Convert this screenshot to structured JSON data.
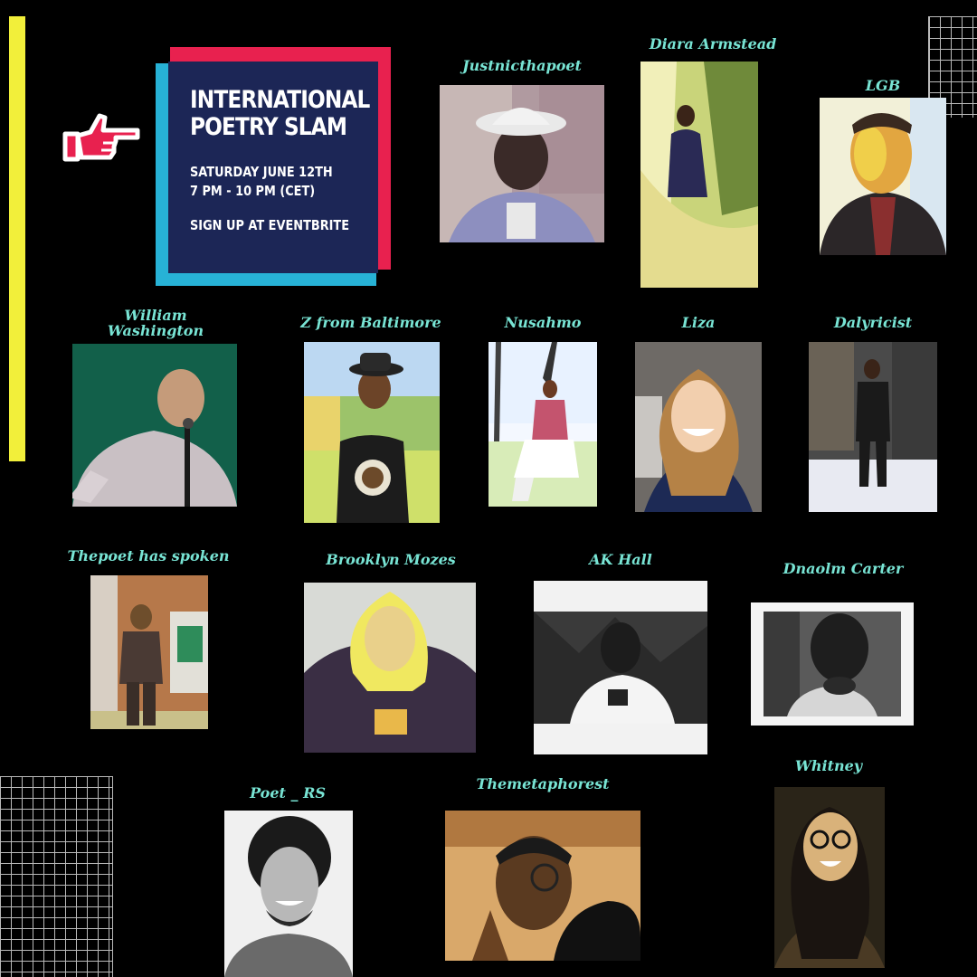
{
  "event": {
    "title_line1": "INTERNATIONAL",
    "title_line2": "POETRY SLAM",
    "date": "SATURDAY JUNE 12TH",
    "time": "7 PM - 10 PM (CET)",
    "signup": "SIGN UP AT EVENTBRITE"
  },
  "colors": {
    "accent_yellow": "#f2ef3a",
    "poster_red": "#e8214f",
    "poster_blue": "#27b2d6",
    "poster_navy": "#1c2656",
    "name_teal": "#78e4d4"
  },
  "icons": [
    "pointing-hand-icon"
  ],
  "poets": [
    {
      "name": "Justnicthapoet"
    },
    {
      "name": "Diara Armstead"
    },
    {
      "name": "LGB"
    },
    {
      "name": "William Washington"
    },
    {
      "name": "Z from Baltimore"
    },
    {
      "name": "Nusahmo"
    },
    {
      "name": "Liza"
    },
    {
      "name": "Dalyricist"
    },
    {
      "name": "Thepoet has spoken"
    },
    {
      "name": "Brooklyn Mozes"
    },
    {
      "name": "AK Hall"
    },
    {
      "name": "Dnaolm Carter"
    },
    {
      "name": "Poet _ RS"
    },
    {
      "name": "Themetaphorest"
    },
    {
      "name": "Whitney"
    }
  ]
}
